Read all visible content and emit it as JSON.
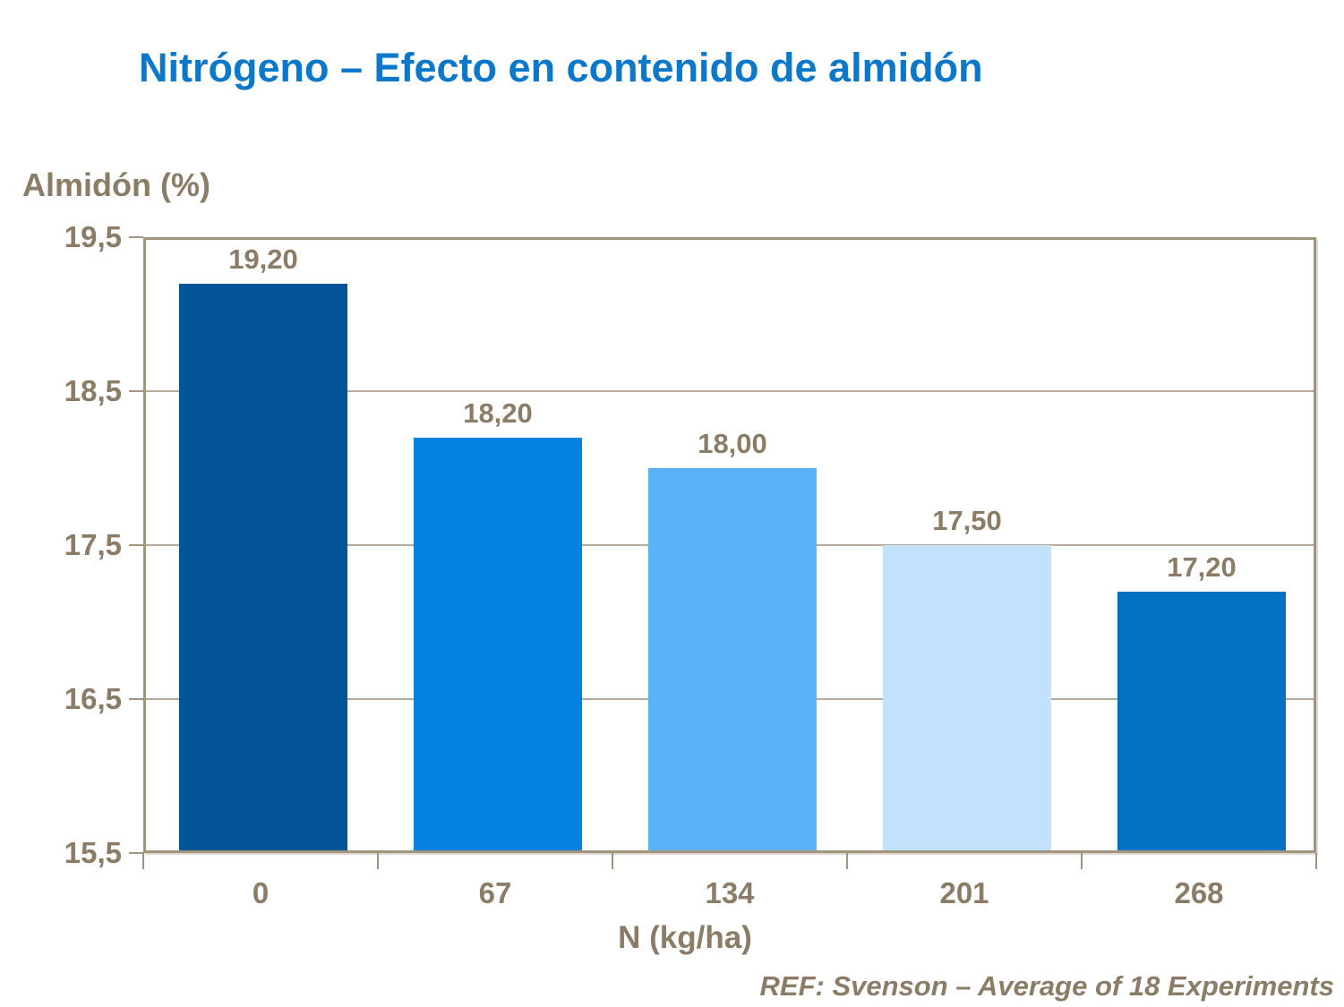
{
  "chart_data": {
    "type": "bar",
    "title": "Nitrógeno – Efecto en contenido de almidón",
    "categories": [
      "0",
      "67",
      "134",
      "201",
      "268"
    ],
    "values": [
      19.2,
      18.2,
      18.0,
      17.5,
      17.2
    ],
    "value_labels": [
      "19,20",
      "18,20",
      "18,00",
      "17,50",
      "17,20"
    ],
    "bar_colors": [
      "#035598",
      "#0582E0",
      "#5AB1F5",
      "#C3E1F9",
      "#0371C2"
    ],
    "xlabel": "N (kg/ha)",
    "ylabel": "Almidón (%)",
    "ylim": [
      15.5,
      19.5
    ],
    "ytick_values": [
      19.5,
      18.5,
      17.5,
      16.5,
      15.5
    ],
    "ytick_labels": [
      "19,5",
      "18,5",
      "17,5",
      "16,5",
      "15,5"
    ],
    "grid": true,
    "legend": "none"
  },
  "footer": {
    "ref": "REF: Svenson – Average of 18 Experiments"
  },
  "colors": {
    "title_blue": "#0C78CA",
    "axis_text_brown": "#8A7C66",
    "plot_border": "#A2957E",
    "gridline": "#B5AA99",
    "background": "#FFFFFF"
  }
}
